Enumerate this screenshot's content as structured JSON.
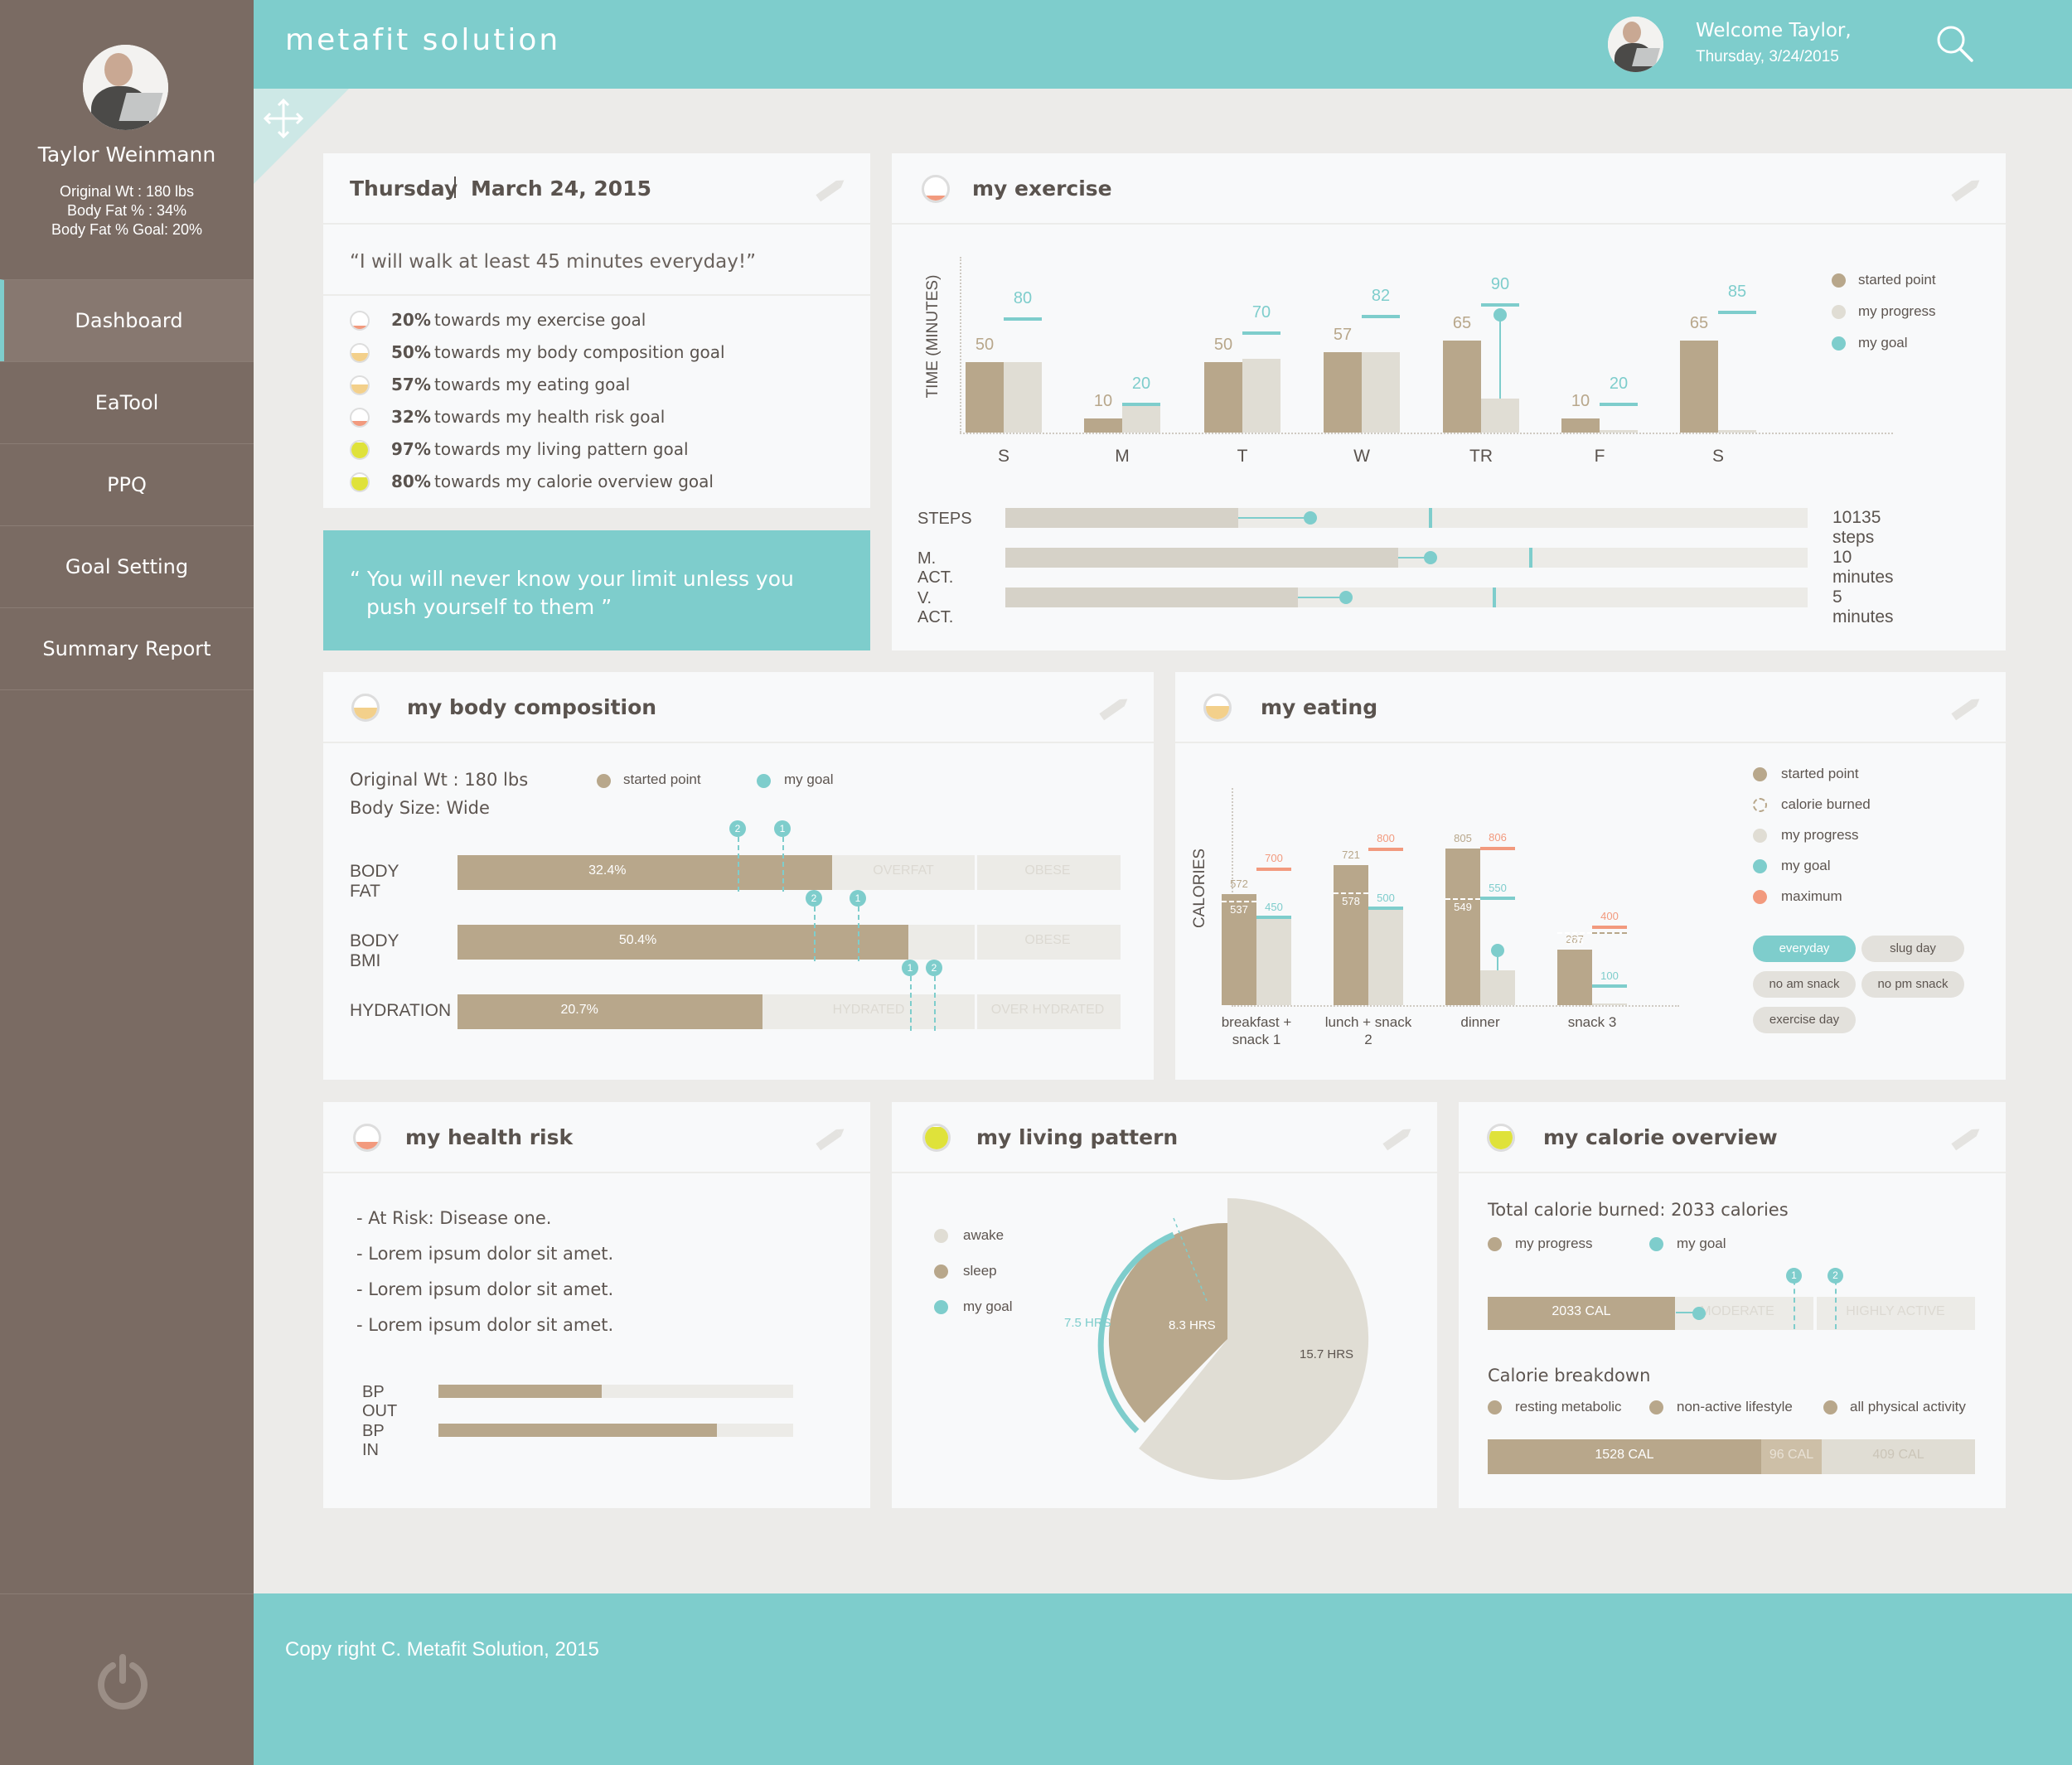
{
  "app": {
    "title": "metafit solution",
    "welcome": "Welcome Taylor,",
    "date": "Thursday, 3/24/2015",
    "footer": "Copy right C. Metafit Solution, 2015"
  },
  "profile": {
    "name": "Taylor Weinmann",
    "stats": [
      "Original Wt : 180 lbs",
      "Body Fat % : 34%",
      "Body Fat % Goal: 20%"
    ]
  },
  "nav": [
    {
      "label": "Dashboard",
      "active": true
    },
    {
      "label": "EaTool"
    },
    {
      "label": "PPQ"
    },
    {
      "label": "Goal Setting"
    },
    {
      "label": "Summary Report"
    }
  ],
  "daycard": {
    "day": "Thursday",
    "date": "March 24, 2015",
    "pledge": "“I will walk at least 45 minutes everyday!”",
    "goals": [
      {
        "pct": "20%",
        "text": " towards my exercise goal",
        "fill": 0.2,
        "color": "#f29a7e"
      },
      {
        "pct": "50%",
        "text": " towards my body composition goal",
        "fill": 0.5,
        "color": "#f3d08b"
      },
      {
        "pct": "57%",
        "text": " towards my eating goal",
        "fill": 0.57,
        "color": "#f3d08b"
      },
      {
        "pct": "32%",
        "text": " towards my health risk goal",
        "fill": 0.32,
        "color": "#f29a7e"
      },
      {
        "pct": "97%",
        "text": " towards my living pattern goal",
        "fill": 0.97,
        "color": "#dfe23a"
      },
      {
        "pct": "80%",
        "text": " towards my calorie overview goal",
        "fill": 0.8,
        "color": "#dfe23a"
      }
    ]
  },
  "quote": [
    "“ You will never know your limit unless  you",
    "push yourself to them ”"
  ],
  "exercise": {
    "title": "my exercise",
    "ylabel": "TIME (MINUTES)",
    "legend": [
      "started point",
      "my progress",
      "my goal"
    ],
    "metrics": [
      {
        "label": "STEPS",
        "value": "10135 steps",
        "fill": 0.29,
        "marker": 0.38,
        "goal": 0.53
      },
      {
        "label": "M. ACT.",
        "value": "10 minutes",
        "fill": 0.49,
        "marker": 0.53,
        "goal": 0.655
      },
      {
        "label": "V. ACT.",
        "value": "5 minutes",
        "fill": 0.365,
        "marker": 0.425,
        "goal": 0.61
      }
    ]
  },
  "chart_data": [
    {
      "type": "bar",
      "title": "my exercise",
      "ylabel": "TIME (MINUTES)",
      "categories": [
        "S",
        "M",
        "T",
        "W",
        "TR",
        "F",
        "S"
      ],
      "series": [
        {
          "name": "started point",
          "values": [
            50,
            10,
            50,
            57,
            65,
            10,
            65
          ]
        },
        {
          "name": "my progress",
          "values": [
            50,
            20,
            52,
            57,
            24,
            2,
            2
          ]
        },
        {
          "name": "my goal",
          "values": [
            80,
            20,
            70,
            82,
            90,
            20,
            85
          ]
        }
      ]
    },
    {
      "type": "bar",
      "title": "my eating",
      "ylabel": "CALORIES",
      "categories": [
        "breakfast + snack 1",
        "lunch + snack 2",
        "dinner",
        "snack 3"
      ],
      "series": [
        {
          "name": "started point",
          "values": [
            572,
            721,
            805,
            287
          ]
        },
        {
          "name": "calorie burned",
          "values": [
            537,
            578,
            549,
            375
          ]
        },
        {
          "name": "my progress",
          "values": [
            450,
            500,
            180,
            10
          ]
        },
        {
          "name": "my goal",
          "values": [
            450,
            500,
            550,
            100
          ]
        },
        {
          "name": "maximum",
          "values": [
            700,
            800,
            806,
            400
          ]
        }
      ]
    }
  ],
  "body": {
    "title": "my body composition",
    "orig": "Original Wt : 180 lbs",
    "size": "Body Size: Wide",
    "legend": [
      "started point",
      "my goal"
    ],
    "rows": [
      {
        "label": "BODY FAT",
        "value": "32.4%",
        "fill": 0.565,
        "zones": [
          "OVERFAT",
          "OBESE"
        ]
      },
      {
        "label": "BODY BMI",
        "value": "50.4%",
        "fill": 0.68,
        "zones": [
          "OBESE"
        ]
      },
      {
        "label": "HYDRATION",
        "value": "20.7%",
        "fill": 0.46,
        "zones": [
          "HYDRATED",
          "OVER HYDRATED"
        ]
      }
    ],
    "markers": [
      "1",
      "2"
    ]
  },
  "eating": {
    "title": "my eating",
    "ylabel": "CALORIES",
    "legend": [
      "started point",
      "calorie burned",
      "my progress",
      "my goal",
      "maximum"
    ],
    "tags": [
      "everyday",
      "slug day",
      "no am snack",
      "no pm snack",
      "exercise day"
    ]
  },
  "health": {
    "title": "my health risk",
    "items": [
      "- At Risk: Disease one.",
      "- Lorem ipsum dolor sit amet.",
      "- Lorem ipsum dolor sit amet.",
      "- Lorem ipsum dolor sit amet."
    ],
    "bp": [
      {
        "label": "BP OUT",
        "fill": 0.46
      },
      {
        "label": "BP IN",
        "fill": 0.785
      }
    ]
  },
  "living": {
    "title": "my living pattern",
    "legend": [
      "awake",
      "sleep",
      "my goal"
    ],
    "awake": "15.7 HRS",
    "sleep": "8.3 HRS",
    "goal": "7.5 HRS"
  },
  "calorie": {
    "title": "my calorie overview",
    "total": "Total calorie burned: 2033 calories",
    "legend": [
      "my progress",
      "my goal"
    ],
    "bar": {
      "value": "2033 CAL",
      "zones": [
        "MODERATE",
        "HIGHLY ACTIVE"
      ]
    },
    "breakdown_title": "Calorie breakdown",
    "breakdown_legend": [
      "resting metabolic",
      "non-active lifestyle",
      "all physical activity"
    ],
    "breakdown": [
      "1528 CAL",
      "96 CAL",
      "409 CAL"
    ]
  },
  "colors": {
    "teal": "#7ecdcc",
    "tan": "#b8a78b",
    "light": "#e0ddd4",
    "orange": "#f29a7e",
    "sidebar": "#7a6b63"
  }
}
